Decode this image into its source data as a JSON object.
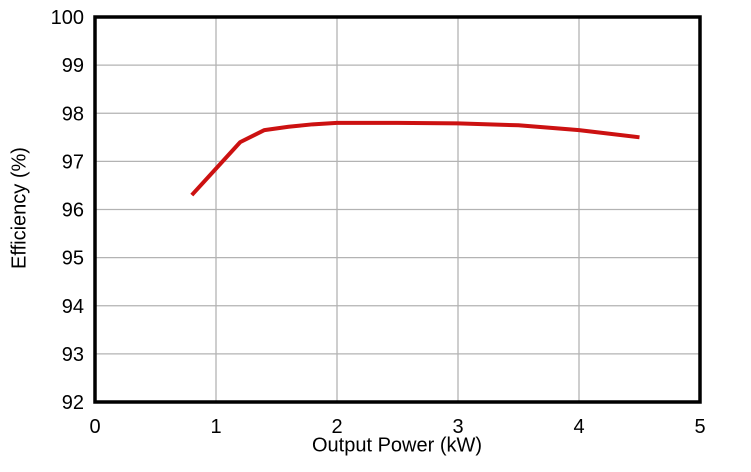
{
  "chart_data": {
    "type": "line",
    "title": "",
    "xlabel": "Output Power (kW)",
    "ylabel": "Efficiency (%)",
    "xlim": [
      0,
      5
    ],
    "ylim": [
      92,
      100
    ],
    "xticks": [
      0,
      1,
      2,
      3,
      4,
      5
    ],
    "yticks": [
      92,
      93,
      94,
      95,
      96,
      97,
      98,
      99,
      100
    ],
    "grid": true,
    "legend": "none",
    "series": [
      {
        "name": "Efficiency",
        "color": "#cc1111",
        "x": [
          0.8,
          1.0,
          1.2,
          1.4,
          1.6,
          1.8,
          2.0,
          2.5,
          3.0,
          3.5,
          4.0,
          4.5
        ],
        "y": [
          96.3,
          96.85,
          97.4,
          97.65,
          97.72,
          97.77,
          97.8,
          97.8,
          97.79,
          97.75,
          97.65,
          97.5
        ]
      }
    ]
  },
  "style": {
    "background": "#ffffff",
    "axis_color": "#000000",
    "grid_color": "#b3b3b3",
    "text_color": "#000000"
  }
}
